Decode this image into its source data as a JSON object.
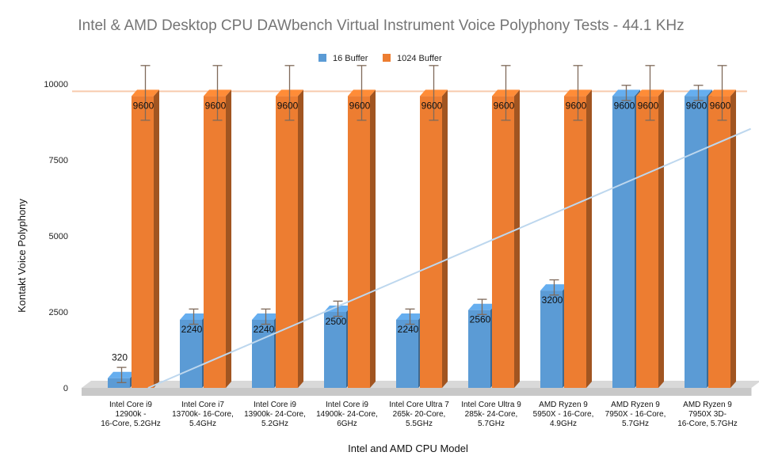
{
  "chart_data": {
    "type": "bar",
    "title": "Intel & AMD Desktop CPU DAWbench Virtual Instrument Voice Polyphony Tests - 44.1 KHz",
    "xlabel": "Intel and AMD CPU Model",
    "ylabel": "Kontakt Voice Polyphony",
    "ylim": [
      0,
      10000
    ],
    "yticks": [
      0,
      2500,
      5000,
      7500,
      10000
    ],
    "grid": false,
    "legend_position": "top",
    "categories": [
      [
        "Intel Core i9",
        "12900k -",
        "16-Core, 5.2GHz"
      ],
      [
        "Intel Core i7",
        "13700k- 16-Core,",
        "5.4GHz"
      ],
      [
        "Intel Core i9",
        "13900k- 24-Core,",
        "5.2GHz"
      ],
      [
        "Intel Core i9",
        "14900k- 24-Core,",
        "6GHz"
      ],
      [
        "Intel  Core Ultra 7",
        "265k- 20-Core,",
        "5.5GHz"
      ],
      [
        "Intel Core Ultra 9",
        "285k- 24-Core,",
        "5.7GHz"
      ],
      [
        "AMD Ryzen 9",
        "5950X - 16-Core,",
        "4.9GHz"
      ],
      [
        "AMD Ryzen 9",
        "7950X - 16-Core,",
        "5.7GHz"
      ],
      [
        "AMD Ryzen 9",
        "7950X 3D-",
        "16-Core, 5.7GHz"
      ]
    ],
    "series": [
      {
        "name": "16 Buffer",
        "color": "#5b9bd5",
        "values": [
          320,
          2240,
          2240,
          2500,
          2240,
          2560,
          3200,
          9600,
          9600
        ],
        "labels": [
          "320",
          "2240",
          "2240",
          "2500",
          "2240",
          "2560",
          "3200",
          "9600",
          "9600"
        ],
        "error": 250
      },
      {
        "name": "1024 Buffer",
        "color": "#ed7d31",
        "values": [
          9600,
          9600,
          9600,
          9600,
          9600,
          9600,
          9600,
          9600,
          9600
        ],
        "labels": [
          "9600",
          "9600",
          "9600",
          "9600",
          "9600",
          "9600",
          "9600",
          "9600",
          "9600"
        ],
        "error": 900
      }
    ],
    "reference_line": {
      "value": 9600,
      "color": "#f8cbad"
    },
    "trendline": {
      "series": "16 Buffer",
      "color": "#bdd7ee"
    }
  }
}
